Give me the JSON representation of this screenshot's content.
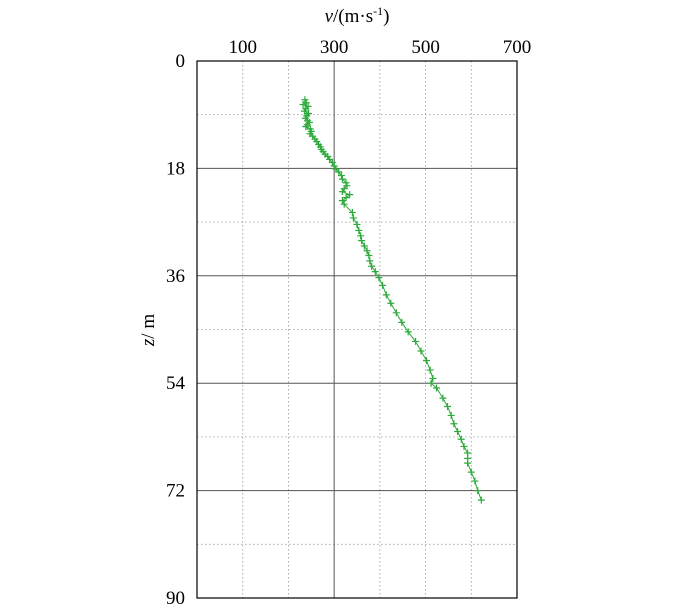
{
  "chart_data": {
    "type": "line",
    "xlabel": {
      "var": "v",
      "unit": "/(m·s",
      "exp": "-1",
      "close": ")"
    },
    "ylabel": {
      "var": "z",
      "unit": "/ m"
    },
    "xlim": [
      0,
      700
    ],
    "ylim": [
      0,
      90
    ],
    "y_inverted": true,
    "x_axis_position": "top",
    "x_ticks": [
      "100",
      "300",
      "500",
      "700"
    ],
    "x_tick_values": [
      100,
      300,
      500,
      700
    ],
    "y_ticks": [
      "0",
      "18",
      "36",
      "54",
      "72",
      "90"
    ],
    "y_tick_values": [
      0,
      18,
      36,
      54,
      72,
      90
    ],
    "x_major_grid": [
      300
    ],
    "x_minor_grid": [
      100,
      200,
      400,
      500,
      600
    ],
    "y_major_grid": [
      18,
      36,
      54,
      72
    ],
    "y_minor_grid": [
      9,
      27,
      45,
      63,
      81
    ],
    "grid": true,
    "series": [
      {
        "color": "#2eaa3c",
        "marker": "+",
        "x": [
          236,
          239,
          232,
          243,
          238,
          235,
          244,
          240,
          237,
          242,
          246,
          241,
          238,
          248,
          250,
          247,
          253,
          258,
          262,
          266,
          270,
          272,
          276,
          280,
          286,
          290,
          296,
          300,
          304,
          310,
          316,
          318,
          326,
          328,
          322,
          318,
          334,
          326,
          318,
          322,
          340,
          342,
          350,
          354,
          358,
          360,
          366,
          372,
          376,
          378,
          382,
          390,
          398,
          406,
          414,
          424,
          436,
          448,
          462,
          478,
          490,
          502,
          510,
          516,
          512,
          524,
          538,
          548,
          556,
          562,
          570,
          578,
          584,
          592,
          592,
          592,
          600,
          608,
          614,
          622
        ],
        "y": [
          6.5,
          7.0,
          7.3,
          7.6,
          8.0,
          8.4,
          8.8,
          9.2,
          9.6,
          10.0,
          10.3,
          10.7,
          11.0,
          11.4,
          11.8,
          12.2,
          12.6,
          13.1,
          13.5,
          14.0,
          14.4,
          14.8,
          15.2,
          15.6,
          16.0,
          16.5,
          17.0,
          17.6,
          18.1,
          18.6,
          19.2,
          19.8,
          20.4,
          20.9,
          21.4,
          21.9,
          22.4,
          22.9,
          23.4,
          24.0,
          25.4,
          26.3,
          27.4,
          28.4,
          29.3,
          30.1,
          31.0,
          31.8,
          32.6,
          33.5,
          34.4,
          35.3,
          36.3,
          37.6,
          39.2,
          40.6,
          42.2,
          43.8,
          45.4,
          47.0,
          48.6,
          50.2,
          51.8,
          53.2,
          54.0,
          54.8,
          56.5,
          57.9,
          59.4,
          60.8,
          62.1,
          63.4,
          64.6,
          65.7,
          66.6,
          67.4,
          68.9,
          70.4,
          72.0,
          73.6
        ]
      }
    ]
  }
}
